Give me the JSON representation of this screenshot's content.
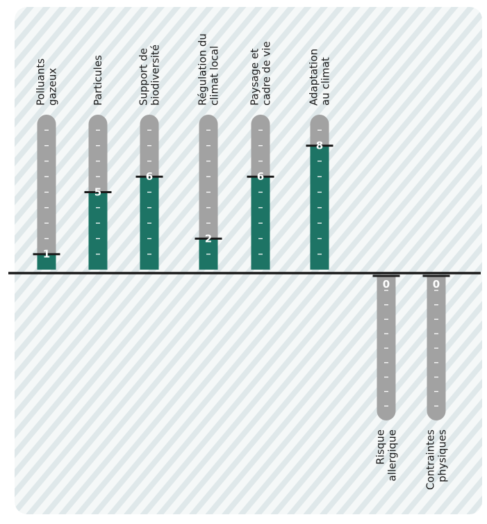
{
  "chart_data": {
    "type": "bar",
    "ylim": [
      -10,
      10
    ],
    "grid": false,
    "colors": {
      "positive_fill": "#1d7465",
      "track": "#a2a2a2",
      "tick": "#ffffff",
      "marker": "#1a1a1a",
      "axis": "#1a1a1a",
      "hatch_a": "#dfe8ea",
      "hatch_b": "#f5f8f8"
    },
    "categories": [
      [
        "Polluants",
        "gazeux"
      ],
      [
        "Particules"
      ],
      [
        "Support de",
        "biodiversité"
      ],
      [
        "Régulation du",
        "climat local"
      ],
      [
        "Paysage et",
        "cadre de vie"
      ],
      [
        "Adaptation",
        "au climat"
      ],
      [
        "Risque",
        "allergique"
      ],
      [
        "Contraintes",
        "physiques"
      ]
    ],
    "values": [
      1,
      5,
      6,
      2,
      6,
      8,
      0,
      0
    ],
    "direction": [
      "positive",
      "positive",
      "positive",
      "positive",
      "positive",
      "positive",
      "negative",
      "negative"
    ]
  }
}
